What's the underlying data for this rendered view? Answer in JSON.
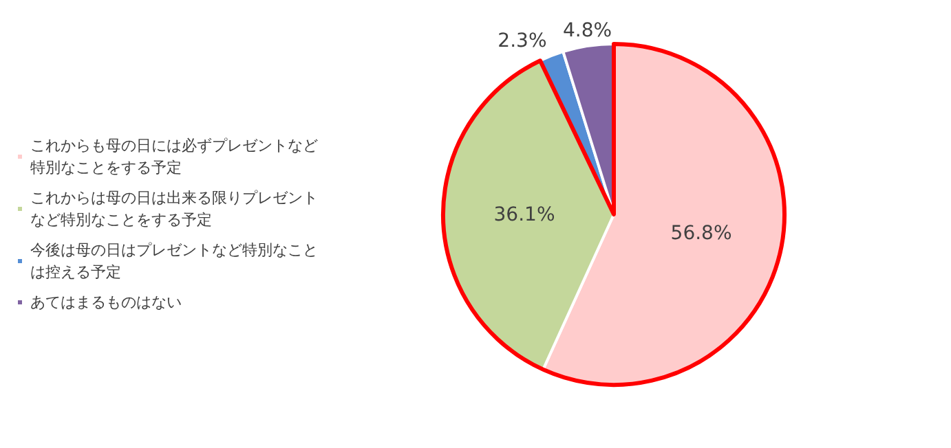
{
  "chart_data": {
    "type": "pie",
    "categories": [
      "これからも母の日には必ずプレゼントなど特別なことをする予定",
      "これからは母の日は出来る限りプレゼントなど特別なことをする予定",
      "今後は母の日はプレゼントなど特別なことは控える予定",
      "あてはまるものはない"
    ],
    "values": [
      56.8,
      36.1,
      2.3,
      4.8
    ],
    "colors": [
      "#ffcccc",
      "#c4d79b",
      "#558ed5",
      "#8064a2"
    ],
    "value_labels": [
      "56.8%",
      "36.1%",
      "2.3%",
      "4.8%"
    ],
    "legend": "left"
  }
}
